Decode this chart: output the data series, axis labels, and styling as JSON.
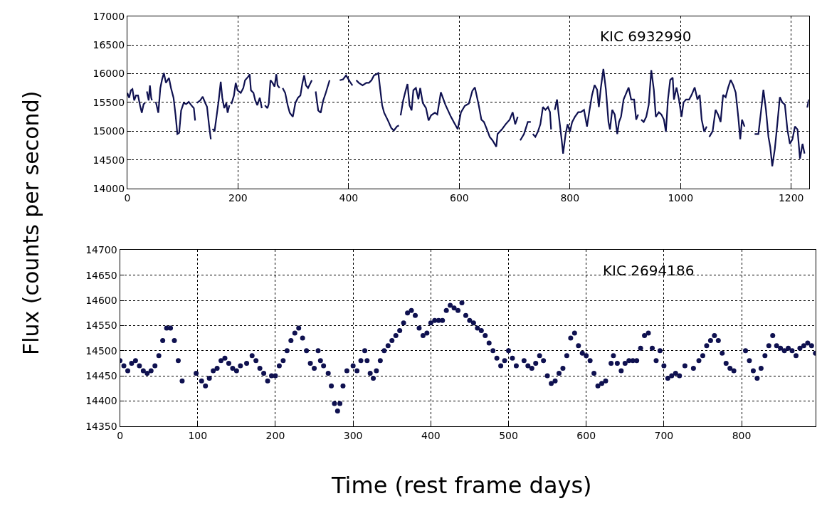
{
  "chart_data": [
    {
      "type": "line",
      "ylabel": "Flux (counts per second)",
      "annotations": [
        "KIC 6932990"
      ],
      "xlim": [
        0,
        1232
      ],
      "ylim": [
        14000,
        17000
      ],
      "xticks": [
        0,
        200,
        400,
        600,
        800,
        1000,
        1200
      ],
      "yticks": [
        14000,
        14500,
        15000,
        15500,
        16000,
        16500,
        17000
      ],
      "grid": true,
      "line_style": "solid",
      "marker": "none",
      "series": [
        {
          "color": "#0f1150",
          "x": [
            0,
            3.2,
            6.4,
            9.2,
            12.4,
            15.6,
            19.3,
            22.9,
            26.1,
            29.4,
            32.1,
            33.5,
            35.3,
            38.5,
            40.8,
            43.1,
            44.5,
            48,
            51.4,
            56,
            59.6,
            62.8,
            66.1,
            69.7,
            75.2,
            78.9,
            83.5,
            87.2,
            90.4,
            93.6,
            97.2,
            101.8,
            106.4,
            111,
            115.6,
            120.2,
            122.5,
            124,
            125.7,
            131.7,
            136.2,
            140.8,
            144,
            147.7,
            150.9,
            152.5,
            153.7,
            157.8,
            161.5,
            165.1,
            168.8,
            171.6,
            175.2,
            178.9,
            181.2,
            184.4,
            186,
            188.1,
            192.7,
            195.9,
            199.1,
            205,
            209.6,
            212.8,
            218.8,
            221.1,
            223.4,
            228,
            231.2,
            234.9,
            239.4,
            243.1,
            246,
            248.6,
            253.2,
            255.5,
            258.7,
            262.4,
            266.1,
            269.3,
            271.6,
            275.2,
            278,
            280.7,
            285.3,
            289.9,
            293.6,
            299.1,
            303.7,
            308.3,
            312.8,
            316.5,
            319.7,
            322.9,
            326.6,
            333.5,
            337,
            340.4,
            345,
            349.5,
            354.1,
            358.7,
            365.6,
            375,
            383.9,
            389.9,
            395.4,
            402.3,
            406.9,
            410,
            413.8,
            418.3,
            425.2,
            432.1,
            436.7,
            441.3,
            445.9,
            450.5,
            453.7,
            457.3,
            460.6,
            464.2,
            471.1,
            477.1,
            481.7,
            487.2,
            490.8,
            492.5,
            494,
            498.6,
            503.2,
            506.4,
            510.1,
            513.8,
            517,
            521.6,
            526.1,
            529.4,
            534,
            539.9,
            544.5,
            549.1,
            556,
            560.3,
            566.7,
            574.9,
            584.9,
            592.2,
            597.2,
            603.1,
            610,
            617.3,
            623.6,
            628.2,
            635,
            640,
            644.6,
            650,
            655.1,
            660.1,
            666.9,
            669.2,
            677,
            683.8,
            691.1,
            696.5,
            701.1,
            705.7,
            708,
            710.2,
            717,
            723.9,
            729.3,
            731,
            733,
            737.5,
            742.1,
            746.6,
            751.2,
            755.8,
            760.3,
            764,
            766,
            768.5,
            772.6,
            776.7,
            780.8,
            785.4,
            787.7,
            792.2,
            795.9,
            800,
            804.1,
            809.1,
            815,
            819.5,
            825.5,
            830.9,
            835.5,
            840,
            844.6,
            849.2,
            852.3,
            856,
            860.5,
            865.1,
            869.7,
            872.4,
            876.5,
            881,
            885.6,
            888.8,
            892.4,
            897,
            906.1,
            910.7,
            916.1,
            919.8,
            923.4,
            926,
            928.9,
            933.4,
            938,
            942.5,
            947.1,
            951.7,
            955.3,
            960.8,
            965.3,
            969.9,
            973.5,
            977.2,
            981.3,
            985.8,
            988.1,
            992.7,
            997.2,
            1001.8,
            1005.4,
            1010,
            1015.5,
            1020,
            1025.5,
            1030.5,
            1034.6,
            1038.2,
            1042.8,
            1047.3,
            1050,
            1051.9,
            1058,
            1063.3,
            1067.8,
            1072.4,
            1076.9,
            1081.5,
            1086.1,
            1090.6,
            1095.2,
            1099.7,
            1104.3,
            1107.9,
            1111.1,
            1115.7,
            1125,
            1133.9,
            1140.7,
            1145.3,
            1149.8,
            1154.4,
            1158.9,
            1162.1,
            1165.8,
            1170.4,
            1174.9,
            1179.5,
            1184,
            1188.6,
            1193.1,
            1197.7,
            1202.3,
            1206.8,
            1211.4,
            1215.9,
            1220.5,
            1224.1,
            1226,
            1229,
            1231.9
          ],
          "values": [
            15665,
            15580,
            15710,
            15730,
            15535,
            15620,
            15620,
            15450,
            15320,
            15470,
            15490,
            null,
            15690,
            15535,
            15795,
            15580,
            15535,
            null,
            15510,
            15320,
            15750,
            15900,
            16010,
            15840,
            15925,
            15750,
            15580,
            15275,
            14950,
            14970,
            15360,
            15490,
            15470,
            15510,
            15450,
            15400,
            15185,
            null,
            15490,
            15535,
            15600,
            15490,
            15425,
            15100,
            14860,
            null,
            15035,
            15010,
            15275,
            15535,
            15860,
            15580,
            15400,
            15490,
            15320,
            15450,
            null,
            15470,
            15620,
            15840,
            15710,
            15665,
            15750,
            15885,
            15950,
            15990,
            15710,
            15665,
            15535,
            15450,
            15580,
            15400,
            null,
            15450,
            15400,
            15470,
            15885,
            15840,
            15775,
            15990,
            15795,
            15750,
            null,
            15750,
            15665,
            15450,
            15320,
            15250,
            15490,
            15580,
            15620,
            15840,
            15970,
            15795,
            15750,
            15885,
            null,
            15690,
            15360,
            15320,
            15535,
            15665,
            15885,
            null,
            15885,
            15900,
            15970,
            15860,
            15795,
            null,
            15885,
            15840,
            15795,
            15840,
            15840,
            15885,
            15970,
            15990,
            16010,
            15710,
            15450,
            15320,
            15185,
            15055,
            15010,
            15080,
            15100,
            null,
            15275,
            15535,
            15710,
            15820,
            15450,
            15360,
            15710,
            15750,
            15555,
            15750,
            15490,
            15400,
            15185,
            15275,
            15320,
            15290,
            15675,
            15460,
            15250,
            15120,
            15035,
            15330,
            15440,
            15480,
            15700,
            15760,
            15460,
            15200,
            15160,
            15030,
            14900,
            14840,
            14730,
            14950,
            15030,
            15120,
            15200,
            15330,
            15120,
            15250,
            null,
            14840,
            14950,
            15160,
            15160,
            null,
            14950,
            14900,
            14990,
            15120,
            15420,
            15370,
            15420,
            15330,
            15030,
            null,
            15370,
            15550,
            15200,
            14820,
            14610,
            14950,
            15120,
            14990,
            15160,
            15250,
            15330,
            15330,
            15370,
            15080,
            15370,
            15630,
            15800,
            15720,
            15420,
            15760,
            16080,
            15720,
            15160,
            15030,
            15370,
            15290,
            14950,
            15160,
            15250,
            15550,
            15760,
            15550,
            15550,
            15200,
            15290,
            null,
            15200,
            15160,
            15250,
            15460,
            16060,
            15720,
            15250,
            15330,
            15290,
            15200,
            14990,
            15550,
            15890,
            15930,
            15550,
            15760,
            15550,
            15250,
            15500,
            15550,
            15550,
            15630,
            15760,
            15550,
            15630,
            15200,
            14990,
            15080,
            null,
            14900,
            15000,
            15370,
            15290,
            15160,
            15630,
            15590,
            15760,
            15890,
            15800,
            15670,
            15250,
            14860,
            15200,
            15080,
            null,
            14950,
            14950,
            15330,
            15720,
            15370,
            14900,
            14730,
            14390,
            14690,
            15120,
            15590,
            15500,
            15460,
            15030,
            14780,
            14860,
            15080,
            15030,
            14520,
            14780,
            14610,
            null,
            15410,
            15550
          ]
        }
      ]
    },
    {
      "type": "scatter",
      "xlabel": "Time (rest frame days)",
      "annotations": [
        "KIC 2694186"
      ],
      "xlim": [
        0,
        895
      ],
      "ylim": [
        14350,
        14700
      ],
      "xticks": [
        0,
        100,
        200,
        300,
        400,
        500,
        600,
        700,
        800
      ],
      "yticks": [
        14350,
        14400,
        14450,
        14500,
        14550,
        14600,
        14650,
        14700
      ],
      "grid": true,
      "marker": "circle",
      "series": [
        {
          "color": "#0f1150",
          "x": [
            0,
            5,
            10,
            15,
            20,
            25,
            30,
            35,
            40,
            45,
            50,
            55,
            60,
            65,
            70,
            75,
            80,
            98,
            105,
            110,
            115,
            120,
            125,
            130,
            135,
            140,
            145,
            150,
            155,
            163,
            170,
            175,
            180,
            185,
            190,
            195,
            200,
            205,
            210,
            215,
            220,
            225,
            230,
            235,
            240,
            245,
            250,
            255,
            258,
            262,
            268,
            272,
            276,
            280,
            283,
            287,
            292,
            300,
            305,
            310,
            315,
            318,
            322,
            326,
            330,
            335,
            340,
            345,
            350,
            355,
            360,
            365,
            370,
            375,
            380,
            385,
            390,
            395,
            400,
            405,
            410,
            415,
            420,
            425,
            430,
            435,
            440,
            445,
            450,
            455,
            460,
            465,
            470,
            475,
            480,
            485,
            490,
            495,
            500,
            505,
            510,
            520,
            525,
            530,
            535,
            540,
            545,
            550,
            555,
            560,
            565,
            570,
            575,
            580,
            585,
            590,
            595,
            600,
            605,
            610,
            615,
            620,
            625,
            632,
            635,
            640,
            645,
            650,
            655,
            660,
            665,
            670,
            675,
            680,
            685,
            690,
            695,
            700,
            705,
            710,
            715,
            720,
            727,
            738,
            745,
            750,
            755,
            760,
            765,
            770,
            775,
            780,
            785,
            790,
            805,
            810,
            815,
            820,
            825,
            830,
            835,
            840,
            845,
            850,
            855,
            860,
            865,
            870,
            875,
            880,
            885,
            890,
            895
          ],
          "values": [
            14480,
            14470,
            14460,
            14475,
            14480,
            14470,
            14460,
            14455,
            14460,
            14470,
            14490,
            14520,
            14545,
            14545,
            14520,
            14480,
            14440,
            14455,
            14440,
            14430,
            14445,
            14460,
            14465,
            14480,
            14485,
            14475,
            14465,
            14460,
            14470,
            14475,
            14490,
            14480,
            14465,
            14455,
            14440,
            14450,
            14450,
            14470,
            14480,
            14500,
            14520,
            14535,
            14545,
            14525,
            14500,
            14475,
            14465,
            14500,
            14480,
            14470,
            14455,
            14430,
            14395,
            14380,
            14395,
            14430,
            14460,
            14470,
            14460,
            14480,
            14500,
            14480,
            14455,
            14445,
            14460,
            14480,
            14500,
            14510,
            14520,
            14530,
            14540,
            14555,
            14575,
            14580,
            14570,
            14545,
            14530,
            14535,
            14555,
            14560,
            14560,
            14560,
            14580,
            14590,
            14585,
            14580,
            14595,
            14570,
            14560,
            14555,
            14545,
            14540,
            14530,
            14515,
            14500,
            14485,
            14470,
            14480,
            14500,
            14485,
            14470,
            14480,
            14470,
            14465,
            14475,
            14490,
            14480,
            14450,
            14435,
            14440,
            14455,
            14465,
            14490,
            14525,
            14535,
            14510,
            14495,
            14490,
            14480,
            14455,
            14430,
            14435,
            14440,
            14475,
            14490,
            14475,
            14460,
            14475,
            14480,
            14480,
            14480,
            14505,
            14530,
            14535,
            14505,
            14480,
            14500,
            14470,
            14445,
            14450,
            14455,
            14450,
            14470,
            14465,
            14480,
            14490,
            14510,
            14520,
            14530,
            14520,
            14495,
            14475,
            14465,
            14460,
            14500,
            14480,
            14460,
            14445,
            14465,
            14490,
            14510,
            14530,
            14510,
            14505,
            14500,
            14505,
            14500,
            14490,
            14505,
            14510,
            14515,
            14510,
            14495
          ]
        }
      ]
    }
  ]
}
